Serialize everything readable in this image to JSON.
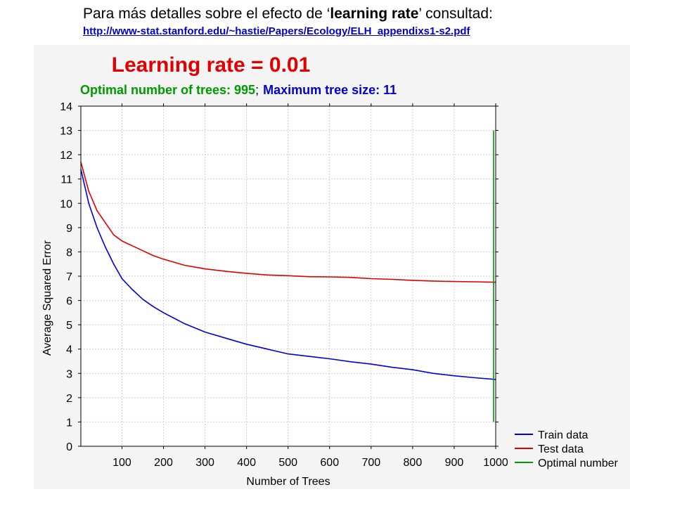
{
  "header": {
    "text_before": "Para más detalles sobre el efecto de ‘",
    "text_bold": "learning rate",
    "text_after": "’ consultad:",
    "link": "http://www-stat.stanford.edu/~hastie/Papers/Ecology/ELH_appendixs1-s2.pdf"
  },
  "chart_data": {
    "type": "line",
    "title": "Learning rate = 0.01",
    "subtitle_green": "Optimal number of trees: 995",
    "subtitle_sep": ";",
    "subtitle_blue": "Maximum tree size: 11",
    "xlabel": "Number of Trees",
    "ylabel": "Average Squared Error",
    "xlim": [
      1,
      1000
    ],
    "ylim": [
      0,
      14
    ],
    "xticks": [
      100,
      200,
      300,
      400,
      500,
      600,
      700,
      800,
      900,
      1000
    ],
    "yticks": [
      0,
      1,
      2,
      3,
      4,
      5,
      6,
      7,
      8,
      9,
      10,
      11,
      12,
      13,
      14
    ],
    "grid": true,
    "legend_position": "bottom-right outside",
    "colors": {
      "train": "#0000dd",
      "test": "#dd0000",
      "optimal": "#009900",
      "title": "#e00000",
      "subtitle_green": "#009900",
      "subtitle_blue": "#0000cc"
    },
    "series": [
      {
        "name": "Train data",
        "x": [
          1,
          20,
          40,
          60,
          80,
          100,
          125,
          150,
          175,
          200,
          250,
          300,
          350,
          400,
          450,
          500,
          550,
          600,
          650,
          700,
          750,
          800,
          850,
          900,
          950,
          1000
        ],
        "y": [
          11.4,
          10.0,
          9.0,
          8.2,
          7.5,
          6.9,
          6.45,
          6.05,
          5.75,
          5.5,
          5.05,
          4.7,
          4.45,
          4.2,
          4.0,
          3.8,
          3.7,
          3.6,
          3.48,
          3.38,
          3.25,
          3.15,
          3.0,
          2.9,
          2.82,
          2.75
        ]
      },
      {
        "name": "Test data",
        "x": [
          1,
          20,
          40,
          60,
          80,
          100,
          125,
          150,
          175,
          200,
          250,
          300,
          350,
          400,
          450,
          500,
          550,
          600,
          650,
          700,
          750,
          800,
          850,
          900,
          950,
          1000
        ],
        "y": [
          11.7,
          10.5,
          9.7,
          9.2,
          8.7,
          8.45,
          8.25,
          8.05,
          7.85,
          7.7,
          7.45,
          7.3,
          7.2,
          7.12,
          7.05,
          7.02,
          6.98,
          6.97,
          6.95,
          6.9,
          6.87,
          6.83,
          6.8,
          6.78,
          6.77,
          6.75
        ]
      },
      {
        "name": "Optimal number",
        "x": [
          995,
          995
        ],
        "y": [
          1.0,
          13.0
        ]
      }
    ]
  }
}
